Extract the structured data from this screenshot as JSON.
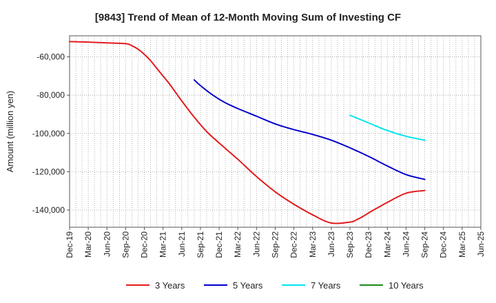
{
  "chart_data": {
    "type": "line",
    "title": "[9843]  Trend of Mean of 12-Month Moving Sum of Investing CF",
    "xlabel": "",
    "ylabel": "Amount (million yen)",
    "ylim": [
      -149000,
      -49000
    ],
    "yticks": [
      -60000,
      -80000,
      -100000,
      -120000,
      -140000
    ],
    "ytick_labels": [
      "-60,000",
      "-80,000",
      "-100,000",
      "-120,000",
      "-140,000"
    ],
    "x_range_months": [
      0,
      66
    ],
    "xticks": [
      0,
      3,
      6,
      9,
      12,
      15,
      18,
      21,
      24,
      27,
      30,
      33,
      36,
      39,
      42,
      45,
      48,
      51,
      54,
      57,
      60,
      63,
      66
    ],
    "xtick_labels": [
      "Dec-19",
      "Mar-20",
      "Jun-20",
      "Sep-20",
      "Dec-20",
      "Mar-21",
      "Jun-21",
      "Sep-21",
      "Dec-21",
      "Mar-22",
      "Jun-22",
      "Sep-22",
      "Dec-22",
      "Mar-23",
      "Jun-23",
      "Sep-23",
      "Dec-23",
      "Mar-24",
      "Jun-24",
      "Sep-24",
      "Dec-24",
      "Mar-25",
      "Jun-25"
    ],
    "grid": true,
    "legend_position": "bottom",
    "series": [
      {
        "name": "3 Years",
        "color": "#e31a1c",
        "x": [
          0,
          3,
          6,
          9,
          10,
          11,
          12,
          13,
          14,
          15,
          16,
          17,
          18,
          20,
          22,
          24,
          27,
          30,
          33,
          36,
          39,
          42,
          45,
          46,
          47,
          48,
          49,
          50,
          51,
          54,
          57
        ],
        "y": [
          -52000,
          -52300,
          -52700,
          -53100,
          -54200,
          -56000,
          -58700,
          -62000,
          -66000,
          -70000,
          -74000,
          -78500,
          -83000,
          -91500,
          -99000,
          -105000,
          -113500,
          -122500,
          -130500,
          -137000,
          -142500,
          -146800,
          -146300,
          -145200,
          -143500,
          -141500,
          -139600,
          -137800,
          -136000,
          -131200,
          -129800
        ]
      },
      {
        "name": "5 Years",
        "color": "#0000cc",
        "x": [
          20,
          21,
          23,
          25,
          27,
          30,
          33,
          36,
          39,
          42,
          45,
          48,
          51,
          54,
          57
        ],
        "y": [
          -72000,
          -75000,
          -80000,
          -84000,
          -87000,
          -91000,
          -95000,
          -98000,
          -100500,
          -103500,
          -107500,
          -112000,
          -117000,
          -121500,
          -124000
        ]
      },
      {
        "name": "7 Years",
        "color": "#00e5ee",
        "x": [
          45,
          48,
          51,
          54,
          57
        ],
        "y": [
          -90500,
          -94500,
          -98500,
          -101500,
          -103500
        ]
      },
      {
        "name": "10 Years",
        "color": "#1a8a1a",
        "x": [],
        "y": []
      }
    ]
  }
}
